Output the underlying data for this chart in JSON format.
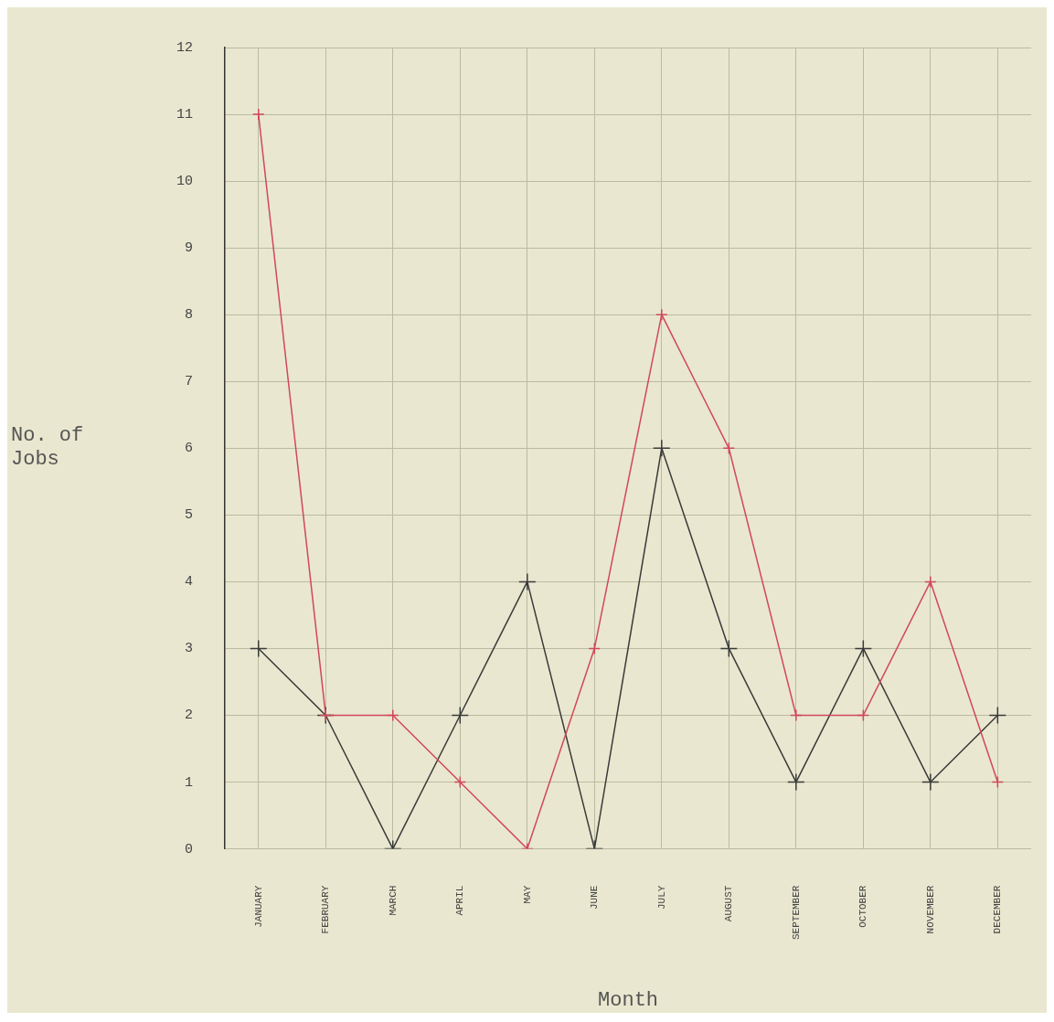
{
  "chart_data": {
    "type": "line",
    "xlabel": "Month",
    "ylabel": "No. of\nJobs",
    "categories": [
      "JANUARY",
      "FEBRUARY",
      "MARCH",
      "APRIL",
      "MAY",
      "JUNE",
      "JULY",
      "AUGUST",
      "SEPTEMBER",
      "OCTOBER",
      "NOVEMBER",
      "DECEMBER"
    ],
    "series": [
      {
        "color": "#d0485a",
        "values": [
          11,
          2,
          2,
          1,
          0,
          3,
          8,
          6,
          2,
          2,
          4,
          1
        ]
      },
      {
        "color": "#3a3a3a",
        "values": [
          3,
          2,
          0,
          2,
          4,
          0,
          6,
          3,
          1,
          3,
          1,
          2
        ]
      }
    ],
    "ylim": [
      0,
      12
    ],
    "yticks": [
      0,
      1,
      2,
      3,
      4,
      5,
      6,
      7,
      8,
      9,
      10,
      11,
      12
    ],
    "grid": true,
    "legend": false,
    "marker": "cross",
    "line_style": "solid"
  }
}
